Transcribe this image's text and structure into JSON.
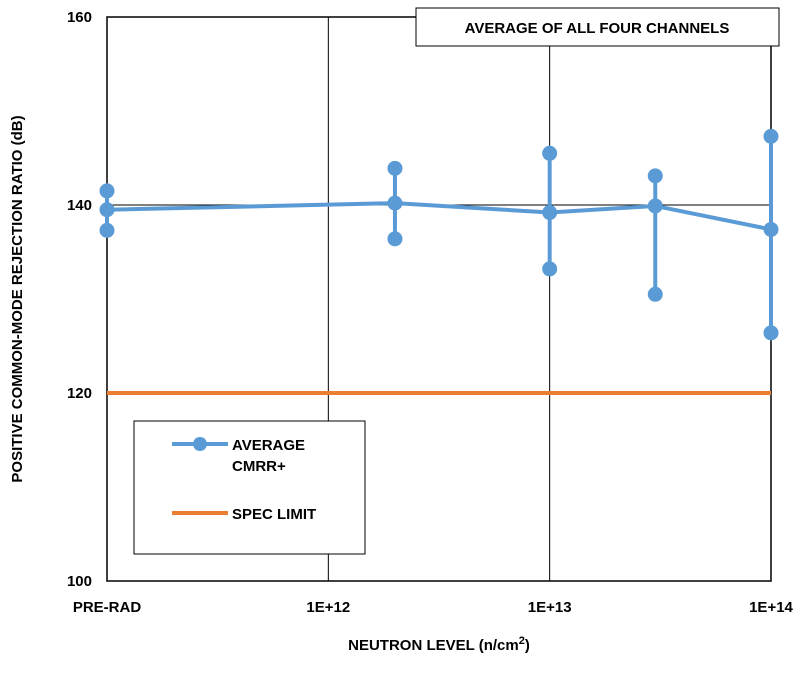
{
  "chart_data": {
    "type": "line",
    "title": "AVERAGE OF ALL FOUR CHANNELS",
    "ylabel": "POSITIVE COMMON-MODE REJECTION RATIO (dB)",
    "xlabel_main": "NEUTRON LEVEL (n/cm",
    "xlabel_sup": "2",
    "xlabel_close": ")",
    "ylim": [
      100,
      160
    ],
    "yticks": [
      "100",
      "120",
      "140",
      "160"
    ],
    "x_scale": "log",
    "xticks": [
      "PRE-RAD",
      "1E+12",
      "1E+13",
      "1E+14"
    ],
    "grid": true,
    "legend_position": "bottom-left",
    "series": [
      {
        "name": "AVERAGE CMRR+",
        "name_lines": [
          "AVERAGE",
          "CMRR+"
        ],
        "color": "#5b9bd5",
        "x": [
          "PRE-RAD",
          2000000000000.0,
          10000000000000.0,
          30000000000000.0,
          100000000000000.0
        ],
        "values": [
          139.5,
          140.2,
          139.2,
          139.9,
          137.4
        ],
        "min": [
          137.3,
          136.4,
          133.2,
          130.5,
          126.4
        ],
        "max": [
          141.5,
          143.9,
          145.5,
          143.1,
          147.3
        ]
      },
      {
        "name": "SPEC LIMIT",
        "color": "#ed7d31",
        "values": [
          120
        ]
      }
    ]
  }
}
